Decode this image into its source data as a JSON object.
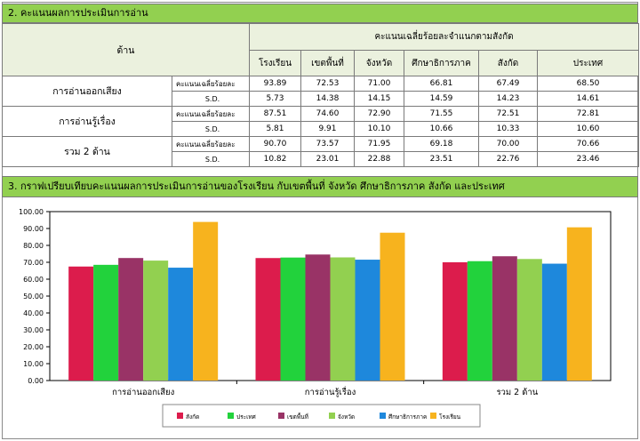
{
  "section2": {
    "title": "2. คะแนนผลการประเมินการอ่าน",
    "header_dimension": "ด้าน",
    "header_group": "คะแนนเฉลี่ยร้อยละจำแนกตามสังกัด",
    "columns": [
      "โรงเรียน",
      "เขตพื้นที่",
      "จังหวัด",
      "ศึกษาธิการภาค",
      "สังกัด",
      "ประเทศ"
    ],
    "rows": [
      {
        "dimension": "การอ่านออกเสียง",
        "mean_label": "คะแนนเฉลี่ยร้อยละ",
        "mean": [
          "93.89",
          "72.53",
          "71.00",
          "66.81",
          "67.49",
          "68.50"
        ],
        "sd_label": "S.D.",
        "sd": [
          "5.73",
          "14.38",
          "14.15",
          "14.59",
          "14.23",
          "14.61"
        ]
      },
      {
        "dimension": "การอ่านรู้เรื่อง",
        "mean_label": "คะแนนเฉลี่ยร้อยละ",
        "mean": [
          "87.51",
          "74.60",
          "72.90",
          "71.55",
          "72.51",
          "72.81"
        ],
        "sd_label": "S.D.",
        "sd": [
          "5.81",
          "9.91",
          "10.10",
          "10.66",
          "10.33",
          "10.60"
        ]
      },
      {
        "dimension": "รวม 2 ด้าน",
        "mean_label": "คะแนนเฉลี่ยร้อยละ",
        "mean": [
          "90.70",
          "73.57",
          "71.95",
          "69.18",
          "70.00",
          "70.66"
        ],
        "sd_label": "S.D.",
        "sd": [
          "10.82",
          "23.01",
          "22.88",
          "23.51",
          "22.76",
          "23.46"
        ]
      }
    ]
  },
  "section3": {
    "title": "3. กราฟเปรียบเทียบคะแนนผลการประเมินการอ่านของโรงเรียน กับเขตพื้นที่ จังหวัด ศึกษาธิการภาค สังกัด และประเทศ"
  },
  "chart_data": {
    "type": "bar",
    "title": "",
    "xlabel": "",
    "ylabel": "",
    "categories": [
      "การอ่านออกเสียง",
      "การอ่านรู้เรื่อง",
      "รวม 2 ด้าน"
    ],
    "ylim": [
      0,
      100
    ],
    "yticks": [
      "0.00",
      "10.00",
      "20.00",
      "30.00",
      "40.00",
      "50.00",
      "60.00",
      "70.00",
      "80.00",
      "90.00",
      "100.00"
    ],
    "grid": false,
    "legend_position": "bottom",
    "series": [
      {
        "name": "สังกัด",
        "color": "#dc1c4c",
        "values": [
          67.49,
          72.51,
          70.0
        ]
      },
      {
        "name": "ประเทศ",
        "color": "#22d23c",
        "values": [
          68.5,
          72.81,
          70.66
        ]
      },
      {
        "name": "เขตพื้นที่",
        "color": "#993366",
        "values": [
          72.53,
          74.6,
          73.57
        ]
      },
      {
        "name": "จังหวัด",
        "color": "#92d050",
        "values": [
          71.0,
          72.9,
          71.95
        ]
      },
      {
        "name": "ศึกษาธิการภาค",
        "color": "#1e88dc",
        "values": [
          66.81,
          71.55,
          69.18
        ]
      },
      {
        "name": "โรงเรียน",
        "color": "#f7b31e",
        "values": [
          93.89,
          87.51,
          90.7
        ]
      }
    ]
  }
}
